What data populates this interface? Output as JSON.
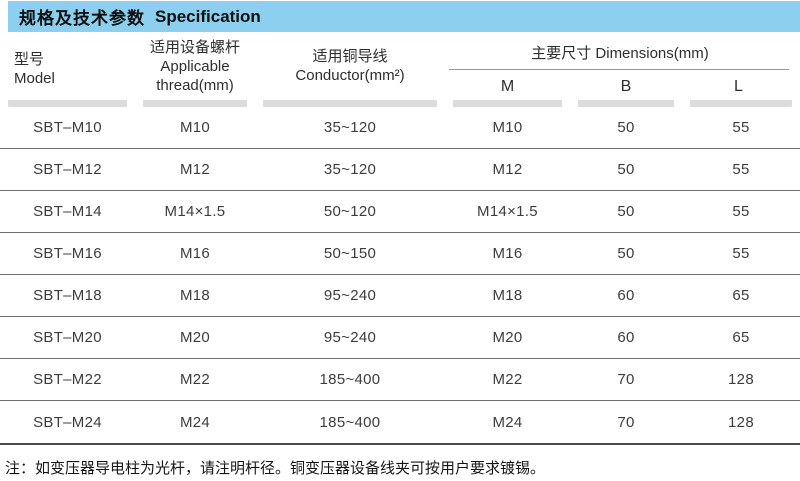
{
  "header": {
    "title_zh": "规格及技术参数",
    "title_en": "Specification",
    "bar_color": "#8ccfee"
  },
  "table": {
    "columns": {
      "model": {
        "zh": "型号",
        "en": "Model"
      },
      "thread": {
        "zh": "适用设备螺杆",
        "en_line1": "Applicable",
        "en_line2": "thread(mm)"
      },
      "conductor": {
        "zh": "适用铜导线",
        "en": "Conductor(mm²)"
      },
      "dimensions": {
        "group_label": "主要尺寸 Dimensions(mm)",
        "sub": [
          "M",
          "B",
          "L"
        ]
      }
    },
    "rows": [
      {
        "model": "SBT–M10",
        "thread": "M10",
        "conductor": "35~120",
        "m": "M10",
        "b": "50",
        "l": "55"
      },
      {
        "model": "SBT–M12",
        "thread": "M12",
        "conductor": "35~120",
        "m": "M12",
        "b": "50",
        "l": "55"
      },
      {
        "model": "SBT–M14",
        "thread": "M14×1.5",
        "conductor": "50~120",
        "m": "M14×1.5",
        "b": "50",
        "l": "55"
      },
      {
        "model": "SBT–M16",
        "thread": "M16",
        "conductor": "50~150",
        "m": "M16",
        "b": "50",
        "l": "55"
      },
      {
        "model": "SBT–M18",
        "thread": "M18",
        "conductor": "95~240",
        "m": "M18",
        "b": "60",
        "l": "65"
      },
      {
        "model": "SBT–M20",
        "thread": "M20",
        "conductor": "95~240",
        "m": "M20",
        "b": "60",
        "l": "65"
      },
      {
        "model": "SBT–M22",
        "thread": "M22",
        "conductor": "185~400",
        "m": "M22",
        "b": "70",
        "l": "128"
      },
      {
        "model": "SBT–M24",
        "thread": "M24",
        "conductor": "185~400",
        "m": "M24",
        "b": "70",
        "l": "128"
      }
    ]
  },
  "footnote": "注：如变压器导电柱为光杆，请注明杆径。铜变压器设备线夹可按用户要求镀锡。"
}
